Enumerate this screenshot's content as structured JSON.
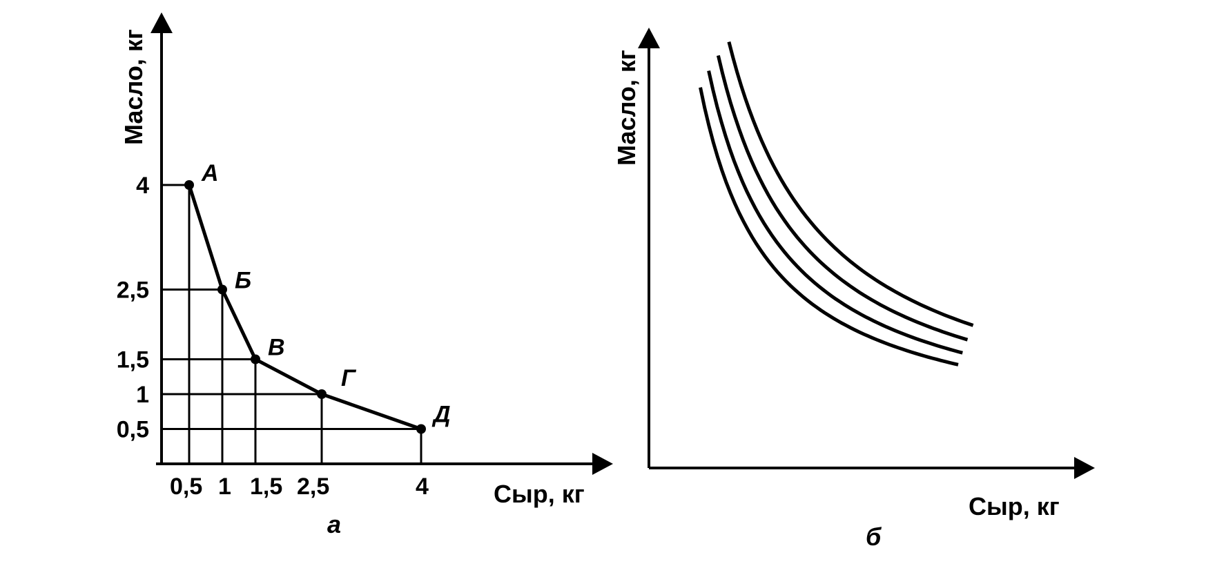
{
  "chart_data": [
    {
      "type": "line",
      "panel_label": "а",
      "xlabel": "Сыр, кг",
      "ylabel": "Масло, кг",
      "x_ticks": [
        {
          "value": 0.5,
          "label": "0,5"
        },
        {
          "value": 1,
          "label": "1"
        },
        {
          "value": 1.5,
          "label": "1,5"
        },
        {
          "value": 2.5,
          "label": "2,5"
        },
        {
          "value": 4,
          "label": "4"
        }
      ],
      "y_ticks": [
        {
          "value": 0.5,
          "label": "0,5"
        },
        {
          "value": 1,
          "label": "1"
        },
        {
          "value": 1.5,
          "label": "1,5"
        },
        {
          "value": 2.5,
          "label": "2,5"
        },
        {
          "value": 4,
          "label": "4"
        }
      ],
      "points": [
        {
          "label": "А",
          "x": 0.5,
          "y": 4
        },
        {
          "label": "Б",
          "x": 1,
          "y": 2.5
        },
        {
          "label": "В",
          "x": 1.5,
          "y": 1.5
        },
        {
          "label": "Г",
          "x": 2.5,
          "y": 1
        },
        {
          "label": "Д",
          "x": 4,
          "y": 0.5
        }
      ],
      "grid": true,
      "xlim": [
        0,
        6.4
      ],
      "ylim": [
        0,
        5.2
      ]
    },
    {
      "type": "line",
      "panel_label": "б",
      "xlabel": "Сыр, кг",
      "ylabel": "Масло, кг",
      "grid": false,
      "x_ticks": [],
      "y_ticks": [],
      "series": [
        {
          "k": 1.0
        },
        {
          "k": 1.35
        },
        {
          "k": 1.75
        },
        {
          "k": 2.2
        }
      ]
    }
  ]
}
